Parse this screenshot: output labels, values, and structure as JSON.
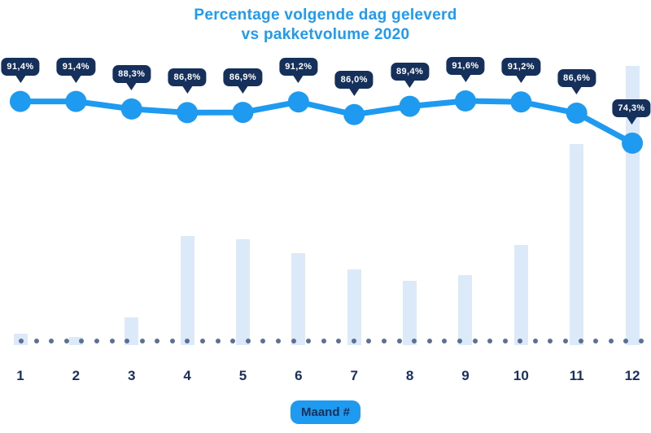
{
  "title": {
    "line1": "Percentage volgende dag geleverd",
    "line2": "vs pakketvolume 2020"
  },
  "xlabel_badge": "Maand #",
  "colors": {
    "accent_blue": "#1e9bf0",
    "navy": "#16305c",
    "bar_light_blue": "#dbe9f8",
    "baseline_dot": "#5c6f94",
    "background": "#ffffff",
    "tooltip_text": "#ffffff"
  },
  "chart_data": {
    "type": "line+bar",
    "title": "Percentage volgende dag geleverd vs pakketvolume 2020",
    "xlabel": "Maand #",
    "categories": [
      1,
      2,
      3,
      4,
      5,
      6,
      7,
      8,
      9,
      10,
      11,
      12
    ],
    "series": [
      {
        "name": "Percentage volgende dag geleverd",
        "type": "line",
        "unit": "%",
        "values": [
          91.4,
          91.4,
          88.3,
          86.8,
          86.9,
          91.2,
          86.0,
          89.4,
          91.6,
          91.2,
          86.6,
          74.3
        ],
        "labels": [
          "91,4%",
          "91,4%",
          "88,3%",
          "86,8%",
          "86,9%",
          "91,2%",
          "86,0%",
          "89,4%",
          "91,6%",
          "91,2%",
          "86,6%",
          "74,3%"
        ]
      },
      {
        "name": "Pakketvolume 2020",
        "type": "bar",
        "unit": "relative index (no axis shown, estimated from bar heights, max = 100)",
        "values": [
          4,
          3,
          10,
          39,
          38,
          33,
          27,
          23,
          25,
          36,
          72,
          100
        ]
      }
    ],
    "legend": "none",
    "grid": false,
    "y_axis_visible": false,
    "dotted_baseline": true
  }
}
